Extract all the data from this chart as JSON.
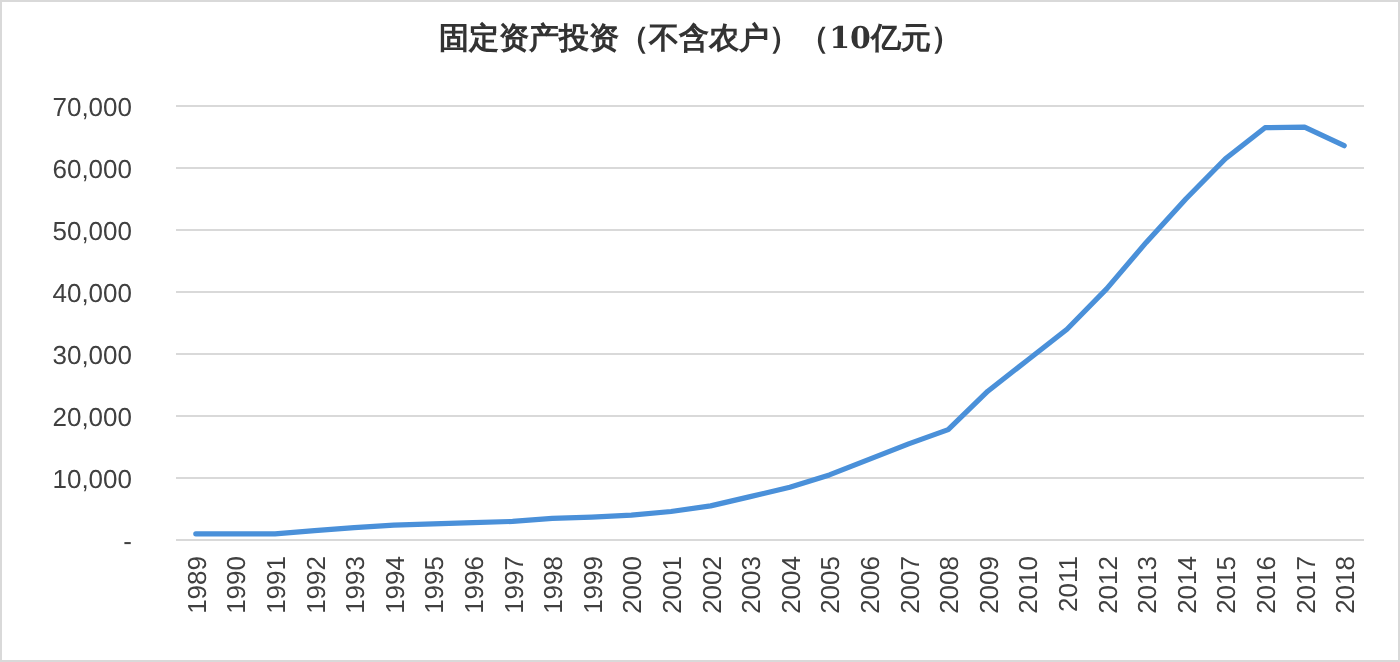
{
  "chart_data": {
    "type": "line",
    "title": "固定资产投资（不含农户）（10亿元）",
    "categories": [
      "1989",
      "1990",
      "1991",
      "1992",
      "1993",
      "1994",
      "1995",
      "1996",
      "1997",
      "1998",
      "1999",
      "2000",
      "2001",
      "2002",
      "2003",
      "2004",
      "2005",
      "2006",
      "2007",
      "2008",
      "2009",
      "2010",
      "2011",
      "2012",
      "2013",
      "2014",
      "2015",
      "2016",
      "2017",
      "2018"
    ],
    "series": [
      {
        "color": "#4a90d9",
        "values": [
          1000,
          1000,
          1000,
          1500,
          2000,
          2400,
          2600,
          2800,
          3000,
          3500,
          3700,
          4000,
          4600,
          5500,
          7000,
          8500,
          10500,
          13000,
          15500,
          17800,
          24000,
          29000,
          34000,
          40500,
          48000,
          55000,
          61500,
          66500,
          66600,
          63600
        ]
      }
    ],
    "ylim": [
      0,
      70000
    ],
    "yticks": [
      {
        "value": 0,
        "label": "-"
      },
      {
        "value": 10000,
        "label": "10,000"
      },
      {
        "value": 20000,
        "label": "20,000"
      },
      {
        "value": 30000,
        "label": "30,000"
      },
      {
        "value": 40000,
        "label": "40,000"
      },
      {
        "value": 50000,
        "label": "50,000"
      },
      {
        "value": 60000,
        "label": "60,000"
      },
      {
        "value": 70000,
        "label": "70,000"
      }
    ],
    "grid": "y",
    "marker": "none",
    "line_style": "solid"
  }
}
